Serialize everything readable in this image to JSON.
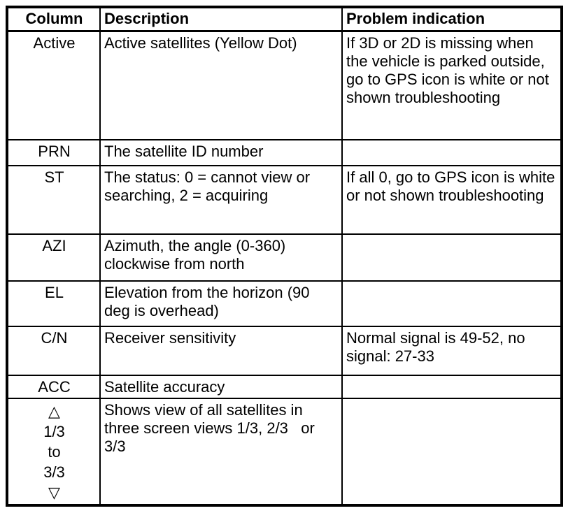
{
  "document": {
    "background_color": "#ffffff",
    "border_color": "#000000",
    "text_color": "#000000"
  },
  "table": {
    "headers": {
      "column": "Column",
      "description": "Description",
      "problem": "Problem indication"
    },
    "rows": [
      {
        "column": "Active",
        "description": "Active satellites (Yellow Dot)",
        "problem": "If 3D or 2D is missing when the vehicle is parked outside, go to GPS icon is white or not shown troubleshooting"
      },
      {
        "column": "PRN",
        "description": "The satellite ID number",
        "problem": ""
      },
      {
        "column": "ST",
        "description": "The status: 0 = cannot view or searching, 2 = acquiring",
        "problem": "If all 0, go to GPS icon is white or not shown troubleshooting"
      },
      {
        "column": "AZI",
        "description": "Azimuth, the angle (0-360) clockwise from north",
        "problem": ""
      },
      {
        "column": "EL",
        "description": "Elevation from the horizon (90 deg is overhead)",
        "problem": ""
      },
      {
        "column": "C/N",
        "description": "Receiver sensitivity",
        "problem": "Normal signal is 49-52, no signal: 27-33"
      },
      {
        "column": "ACC",
        "description": "Satellite accuracy",
        "problem": ""
      },
      {
        "column_lines": [
          "△",
          "1/3",
          "to",
          "3/3",
          "▽"
        ],
        "description": "Shows view of all satellites in three screen views 1/3, 2/3   or 3/3",
        "problem": ""
      }
    ]
  }
}
